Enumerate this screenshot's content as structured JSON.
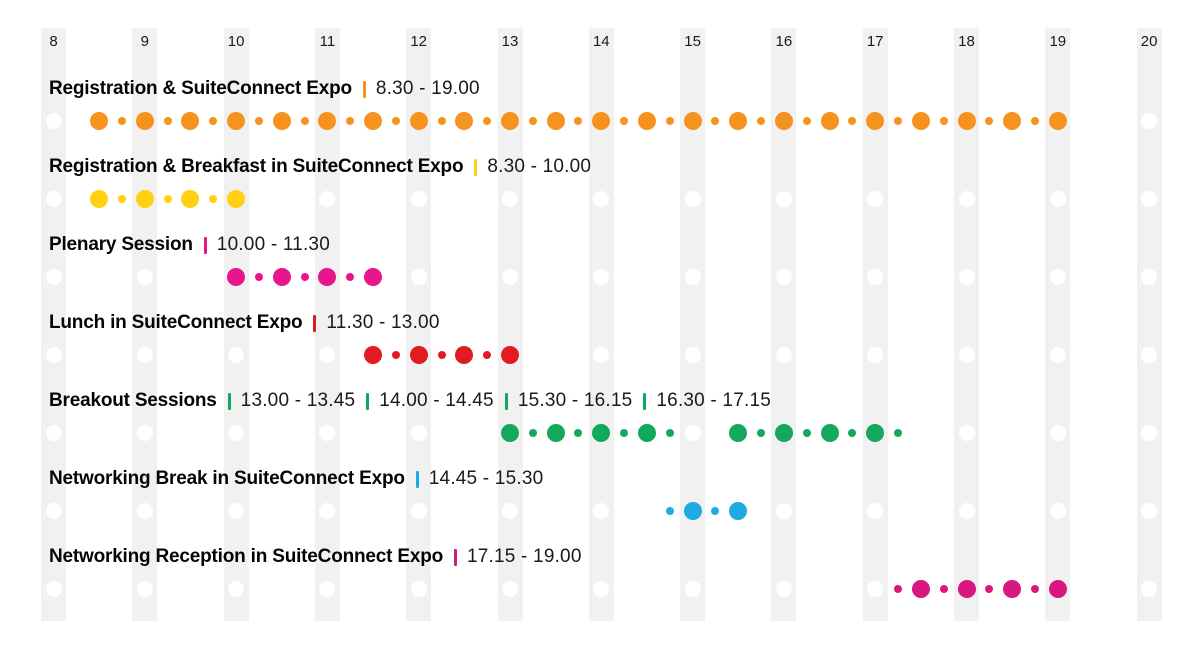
{
  "chart_data": {
    "type": "timeline",
    "title": "",
    "x_axis": {
      "unit": "hour",
      "start": 8,
      "end": 20,
      "tick_labels": [
        "8",
        "9",
        "10",
        "11",
        "12",
        "13",
        "14",
        "15",
        "16",
        "17",
        "18",
        "19",
        "20"
      ]
    },
    "dot_rules": {
      "interval_minutes": 15,
      "big_dot_minutes": [
        0,
        30
      ],
      "small_dot_minutes": [
        15,
        45
      ]
    },
    "grid": {
      "style": "vertical-stripes",
      "stripe_color": "#F1F1F1",
      "stripe_marker_color": "#FFFFFF"
    },
    "rows": [
      {
        "label": "Registration & SuiteConnect Expo",
        "color": "#F6921E",
        "ranges": [
          {
            "display": "8.30 - 19.00",
            "start": 8.5,
            "end": 19.0
          }
        ]
      },
      {
        "label": "Registration & Breakfast in SuiteConnect Expo",
        "color": "#FFD111",
        "ranges": [
          {
            "display": "8.30 - 10.00",
            "start": 8.5,
            "end": 10.0
          }
        ]
      },
      {
        "label": "Plenary Session",
        "color": "#E8168C",
        "ranges": [
          {
            "display": "10.00 - 11.30",
            "start": 10.0,
            "end": 11.5
          }
        ]
      },
      {
        "label": "Lunch in SuiteConnect Expo",
        "color": "#E21B23",
        "ranges": [
          {
            "display": "11.30 - 13.00",
            "start": 11.5,
            "end": 13.0
          }
        ]
      },
      {
        "label": "Breakout Sessions",
        "color": "#12A95C",
        "ranges": [
          {
            "display": "13.00 - 13.45",
            "start": 13.0,
            "end": 13.75
          },
          {
            "display": "14.00 - 14.45",
            "start": 14.0,
            "end": 14.75
          },
          {
            "display": "15.30 - 16.15",
            "start": 15.5,
            "end": 16.25
          },
          {
            "display": "16.30 - 17.15",
            "start": 16.5,
            "end": 17.25
          }
        ]
      },
      {
        "label": "Networking Break in SuiteConnect Expo",
        "color": "#1FAAE3",
        "ranges": [
          {
            "display": "14.45 - 15.30",
            "start": 14.75,
            "end": 15.5
          }
        ]
      },
      {
        "label": "Networking Reception in SuiteConnect Expo",
        "color": "#D8187F",
        "ranges": [
          {
            "display": "17.15 - 19.00",
            "start": 17.25,
            "end": 19.0
          }
        ]
      }
    ]
  }
}
